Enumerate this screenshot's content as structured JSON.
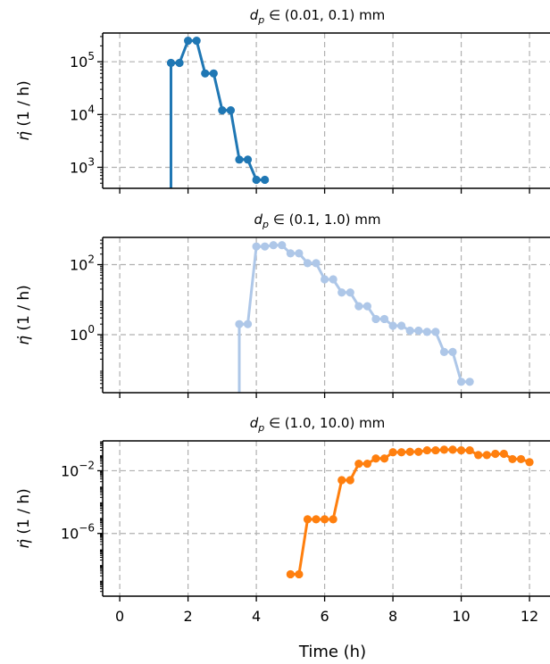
{
  "colors": {
    "grid": "#b0b0b0",
    "axis": "#000000"
  },
  "shared_x": {
    "label": "Time (h)",
    "ticks": [
      0,
      2,
      4,
      6,
      8,
      10,
      12
    ],
    "xlim": [
      -0.5,
      12.6
    ]
  },
  "chart_data": [
    {
      "type": "line",
      "title_prefix": "d",
      "title_sub": "p",
      "title_rest": " ∈ (0.01, 0.1) mm",
      "ylabel_sym": "η̇",
      "ylabel_unit": " (1 / h)",
      "yscale": "log",
      "ylim": [
        400,
        350000
      ],
      "yticks": [
        {
          "value": 1000,
          "base": "10",
          "exp": "3"
        },
        {
          "value": 10000,
          "base": "10",
          "exp": "4"
        },
        {
          "value": 100000,
          "base": "10",
          "exp": "5"
        }
      ],
      "grid": true,
      "color": "#1f77b4",
      "drop_x": 1.5,
      "x": [
        1.5,
        1.75,
        2.0,
        2.25,
        2.5,
        2.75,
        3.0,
        3.25,
        3.5,
        3.75,
        4.0,
        4.25
      ],
      "values": [
        95000,
        95000,
        250000,
        250000,
        60000,
        60000,
        12000,
        12000,
        1400,
        1400,
        580,
        580
      ]
    },
    {
      "type": "line",
      "title_prefix": "d",
      "title_sub": "p",
      "title_rest": " ∈ (0.1, 1.0) mm",
      "ylabel_sym": "η̇",
      "ylabel_unit": " (1 / h)",
      "yscale": "log",
      "ylim": [
        0.022,
        600
      ],
      "yticks": [
        {
          "value": 1,
          "base": "10",
          "exp": "0"
        },
        {
          "value": 100,
          "base": "10",
          "exp": "2"
        }
      ],
      "grid": true,
      "color": "#aec7e8",
      "drop_x": 3.5,
      "x": [
        3.5,
        3.75,
        4.0,
        4.25,
        4.5,
        4.75,
        5.0,
        5.25,
        5.5,
        5.75,
        6.0,
        6.25,
        6.5,
        6.75,
        7.0,
        7.25,
        7.5,
        7.75,
        8.0,
        8.25,
        8.5,
        8.75,
        9.0,
        9.25,
        9.5,
        9.75,
        10.0,
        10.25
      ],
      "values": [
        2.0,
        2.0,
        330,
        330,
        360,
        360,
        210,
        210,
        110,
        110,
        38,
        38,
        16,
        16,
        6.5,
        6.5,
        2.8,
        2.8,
        1.8,
        1.8,
        1.3,
        1.3,
        1.2,
        1.2,
        0.32,
        0.32,
        0.045,
        0.045
      ]
    },
    {
      "type": "line",
      "title_prefix": "d",
      "title_sub": "p",
      "title_rest": " ∈ (1.0, 10.0) mm",
      "ylabel_sym": "η̇",
      "ylabel_unit": " (1 / h)",
      "yscale": "log",
      "ylim": [
        1e-10,
        0.8
      ],
      "yticks": [
        {
          "value": 1e-06,
          "base": "10",
          "exp": "−6"
        },
        {
          "value": 0.01,
          "base": "10",
          "exp": "−2"
        }
      ],
      "grid": true,
      "color": "#ff7f0e",
      "x": [
        5.0,
        5.25,
        5.5,
        5.75,
        6.0,
        6.25,
        6.5,
        6.75,
        7.0,
        7.25,
        7.5,
        7.75,
        8.0,
        8.25,
        8.5,
        8.75,
        9.0,
        9.25,
        9.5,
        9.75,
        10.0,
        10.25,
        10.5,
        10.75,
        11.0,
        11.25,
        11.5,
        11.75,
        12.0
      ],
      "values": [
        2.5e-09,
        2.5e-09,
        8e-06,
        8e-06,
        8e-06,
        8e-06,
        0.0025,
        0.0025,
        0.028,
        0.028,
        0.06,
        0.06,
        0.15,
        0.15,
        0.16,
        0.16,
        0.2,
        0.2,
        0.22,
        0.22,
        0.2,
        0.2,
        0.1,
        0.1,
        0.12,
        0.12,
        0.055,
        0.055,
        0.035
      ]
    }
  ]
}
